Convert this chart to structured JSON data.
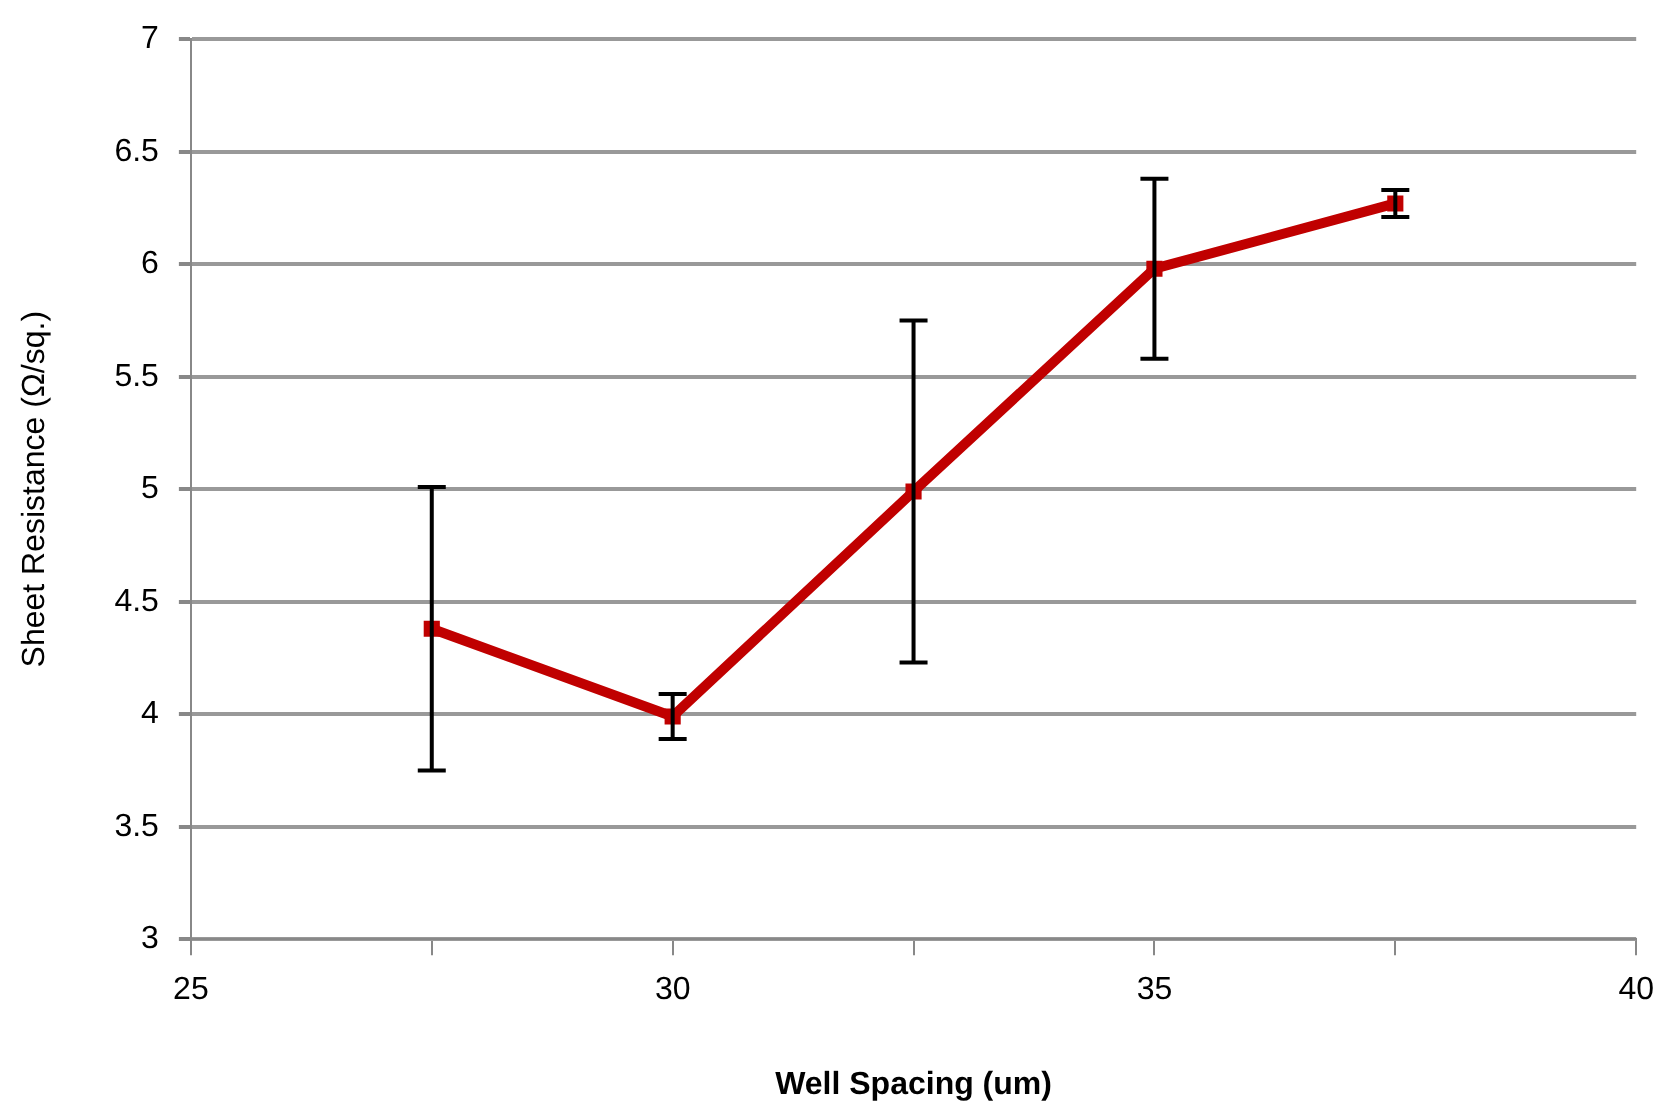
{
  "chart_data": {
    "type": "line",
    "xlabel": "Well Spacing (um)",
    "ylabel": "Sheet Resistance (Ω/sq.)",
    "x": [
      27.5,
      30,
      32.5,
      35,
      37.5
    ],
    "series": [
      {
        "color": "#c00000",
        "values": [
          4.38,
          3.99,
          4.99,
          5.98,
          6.27
        ],
        "errors": [
          0.63,
          0.1,
          0.76,
          0.4,
          0.06
        ]
      }
    ],
    "xlim": [
      25,
      40
    ],
    "xticks": [
      25,
      {
        "value": 27.5,
        "label": null
      },
      30,
      {
        "value": 32.5,
        "label": null
      },
      35,
      {
        "value": 37.5,
        "label": null
      },
      40
    ],
    "ylim": [
      3,
      7
    ],
    "yticks": [
      3,
      3.5,
      4,
      4.5,
      5,
      5.5,
      6,
      6.5,
      7
    ],
    "grid": "y",
    "legend": false,
    "marker": "square",
    "line_style": "solid"
  }
}
